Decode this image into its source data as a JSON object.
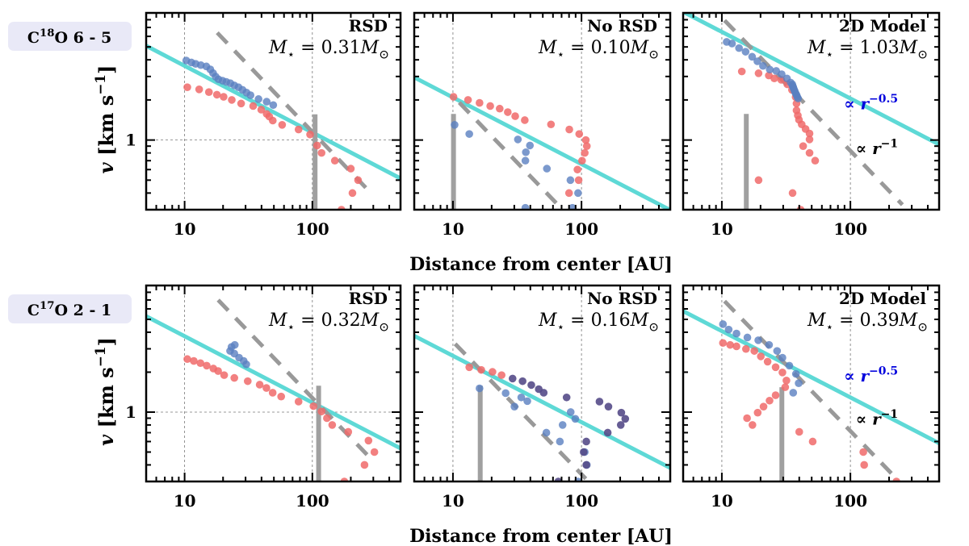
{
  "figure": {
    "rows": [
      {
        "line_label": "C^{18}O 6 - 5",
        "ylabel": "v [km s^{−1}]",
        "xlabel": "Distance from center [AU]"
      },
      {
        "line_label": "C^{17}O 2 - 1",
        "ylabel": "v [km s^{−1}]",
        "xlabel": "Distance from center [AU]"
      }
    ],
    "colors": {
      "fit_line": "#5ed9d6",
      "power_law_dashed": "#999999",
      "redshifted": "#f06a6a",
      "blueshifted": "#5a7fc0",
      "overlap": "#554b88",
      "vertical_bar": "#a0a0a0",
      "annotation_blue": "#0000dd",
      "pill_bg": "#e9e9f7"
    }
  },
  "chart_data": [
    {
      "type": "scatter",
      "row": 0,
      "col": 0,
      "title": "RSD",
      "mass_label": "M_{⋆} = 0.31M_{⊙}",
      "xscale": "log",
      "yscale": "log",
      "xlim": [
        5,
        490
      ],
      "ylim": [
        0.3,
        9
      ],
      "xticks": [
        "10",
        "100"
      ],
      "yticks": [
        "1"
      ],
      "grid": true,
      "fit_power_law": {
        "index": -0.5,
        "coefficient": 11.4
      },
      "dashed_power_law": {
        "index": -1,
        "coefficient": 115,
        "r_range": [
          18,
          290
        ]
      },
      "vertical_marker": {
        "r": 105,
        "v_top": 1.56
      },
      "red": {
        "r": [
          10.5,
          13.0,
          15.5,
          17.9,
          20.2,
          23.4,
          27.7,
          34.4,
          39.8,
          43.9,
          46,
          49,
          58,
          78,
          96,
          109,
          118,
          150,
          200,
          228,
          206,
          169
        ],
        "v": [
          2.49,
          2.4,
          2.29,
          2.19,
          2.11,
          2.0,
          1.88,
          1.8,
          1.69,
          1.57,
          1.5,
          1.4,
          1.3,
          1.2,
          1.1,
          0.91,
          0.8,
          0.7,
          0.61,
          0.5,
          0.4,
          0.3
        ]
      },
      "blue": {
        "r": [
          10.3,
          11.3,
          12.2,
          13.4,
          14.8,
          15.9,
          16.7,
          17.5,
          18.4,
          19.8,
          21.2,
          22.8,
          24.5,
          26.4,
          28.4,
          30.5,
          32.8,
          37.9,
          43.9,
          49.4
        ],
        "v": [
          3.95,
          3.82,
          3.73,
          3.65,
          3.57,
          3.39,
          3.18,
          2.99,
          2.86,
          2.79,
          2.73,
          2.67,
          2.57,
          2.49,
          2.38,
          2.27,
          2.17,
          2.03,
          1.94,
          1.83
        ]
      }
    },
    {
      "type": "scatter",
      "row": 0,
      "col": 1,
      "title": "No RSD",
      "mass_label": "M_{⋆} = 0.10M_{⊙}",
      "xscale": "log",
      "yscale": "log",
      "xlim": [
        5,
        490
      ],
      "ylim": [
        0.3,
        9
      ],
      "xticks": [
        "10",
        "100"
      ],
      "yticks": [],
      "grid": true,
      "fit_power_law": {
        "index": -0.5,
        "coefficient": 6.6
      },
      "dashed_power_law": {
        "index": -1,
        "coefficient": 21.4,
        "r_range": [
          11.2,
          67
        ]
      },
      "vertical_marker": {
        "r": 10.1,
        "v_top": 1.57
      },
      "red": {
        "r": [
          10.1,
          13.1,
          16.1,
          19.5,
          23.1,
          26.7,
          30.5,
          36.2,
          57.9,
          80.4,
          96,
          108,
          110,
          106,
          101,
          93,
          95,
          80
        ],
        "v": [
          2.11,
          2.0,
          1.9,
          1.8,
          1.72,
          1.62,
          1.51,
          1.41,
          1.31,
          1.2,
          1.11,
          1.0,
          0.9,
          0.8,
          0.7,
          0.6,
          0.5,
          0.4
        ]
      },
      "blue": {
        "r": [
          10.3,
          13.4,
          32,
          39.7,
          36.9,
          36.6,
          53.8,
          82,
          94,
          36.6,
          85
        ],
        "v": [
          1.3,
          1.11,
          1.01,
          0.91,
          0.81,
          0.7,
          0.61,
          0.5,
          0.4,
          0.31,
          0.31
        ]
      }
    },
    {
      "type": "scatter",
      "row": 0,
      "col": 2,
      "title": "2D Model",
      "mass_label": "M_{⋆} = 1.03M_{⊙}",
      "xscale": "log",
      "yscale": "log",
      "xlim": [
        5,
        490
      ],
      "ylim": [
        0.3,
        9
      ],
      "xticks": [
        "10",
        "100"
      ],
      "yticks": [],
      "grid": true,
      "fit_power_law": {
        "index": -0.5,
        "coefficient": 20.5
      },
      "dashed_power_law": {
        "index": -1,
        "coefficient": 83,
        "r_range": [
          10.5,
          254
        ]
      },
      "vertical_marker": {
        "r": 15.5,
        "v_top": 1.57
      },
      "annotations": [
        {
          "text": "∝ r^{−0.5}",
          "r": 89,
          "v": 1.9,
          "color": "blue"
        },
        {
          "text": "∝ r^{−1}",
          "r": 110,
          "v": 0.88,
          "color": "black"
        }
      ],
      "red": {
        "r": [
          14.3,
          19.3,
          23.2,
          25.6,
          29.0,
          32.3,
          35.1,
          37.5,
          38.1,
          38.1,
          39.0,
          39.8,
          41.8,
          44.8,
          48.1,
          48.1,
          42.9,
          48.1,
          53.2,
          19.3,
          35.5,
          41.0
        ],
        "v": [
          3.27,
          3.17,
          3.05,
          2.9,
          2.83,
          2.62,
          2.38,
          2.1,
          1.88,
          1.67,
          1.53,
          1.42,
          1.31,
          1.21,
          1.12,
          1.01,
          0.9,
          0.8,
          0.7,
          0.5,
          0.4,
          0.3
        ]
      },
      "blue": {
        "r": [
          10.9,
          12.0,
          13.6,
          15.3,
          17.2,
          18.9,
          20.9,
          23.6,
          26.5,
          29.2,
          32.1,
          34.3,
          35.3,
          35.6,
          35.9,
          36.2,
          36.6,
          37.0,
          37.5,
          38.1,
          38.6,
          39.2
        ],
        "v": [
          5.45,
          5.3,
          4.9,
          4.6,
          4.22,
          3.9,
          3.6,
          3.38,
          3.3,
          3.12,
          2.9,
          2.7,
          2.62,
          2.55,
          2.49,
          2.43,
          2.37,
          2.31,
          2.24,
          2.18,
          2.11,
          2.05
        ]
      }
    },
    {
      "type": "scatter",
      "row": 1,
      "col": 0,
      "title": "RSD",
      "mass_label": "M_{⋆} = 0.32M_{⊙}",
      "xscale": "log",
      "yscale": "log",
      "xlim": [
        5,
        490
      ],
      "ylim": [
        0.3,
        9
      ],
      "xticks": [
        "10",
        "100"
      ],
      "yticks": [
        "1"
      ],
      "grid": true,
      "fit_power_law": {
        "index": -0.5,
        "coefficient": 11.8
      },
      "dashed_power_law": {
        "index": -1,
        "coefficient": 128,
        "r_range": [
          18.3,
          295
        ]
      },
      "vertical_marker": {
        "r": 112,
        "v_top": 1.58
      },
      "red": {
        "r": [
          10.5,
          11.8,
          13.3,
          14.9,
          16.8,
          18.3,
          20.4,
          24.5,
          31.2,
          38.7,
          43.7,
          48.9,
          57,
          78,
          102,
          118,
          130,
          143,
          191,
          275,
          306,
          256,
          178
        ],
        "v": [
          2.51,
          2.43,
          2.34,
          2.24,
          2.13,
          2.04,
          1.9,
          1.81,
          1.71,
          1.61,
          1.52,
          1.4,
          1.31,
          1.2,
          1.11,
          1.01,
          0.9,
          0.8,
          0.71,
          0.61,
          0.5,
          0.4,
          0.3
        ]
      },
      "blue": {
        "r": [
          22.7,
          24.7,
          23.3,
          24.5,
          26.7,
          29,
          30.4
        ],
        "v": [
          2.89,
          3.21,
          3.1,
          2.76,
          2.57,
          2.43,
          2.29
        ]
      }
    },
    {
      "type": "scatter",
      "row": 1,
      "col": 1,
      "title": "No RSD",
      "mass_label": "M_{⋆} = 0.16M_{⊙}",
      "xscale": "log",
      "yscale": "log",
      "xlim": [
        5,
        490
      ],
      "ylim": [
        0.3,
        9
      ],
      "xticks": [
        "10",
        "100"
      ],
      "yticks": [],
      "grid": true,
      "fit_power_law": {
        "index": -0.5,
        "coefficient": 8.4
      },
      "dashed_power_law": {
        "index": -1,
        "coefficient": 34,
        "r_range": [
          10.4,
          108
        ]
      },
      "vertical_marker": {
        "r": 16.3,
        "v_top": 1.58
      },
      "red": {
        "r": [
          13.4,
          16.6,
          20.3,
          23.9
        ],
        "v": [
          2.18,
          2.08,
          2.01,
          1.9
        ]
      },
      "blue": {
        "r": [
          16.1,
          25.7,
          34,
          37.9,
          30.1,
          82.4,
          89.5,
          71.3,
          53.3,
          67.9,
          106,
          110,
          94
        ],
        "v": [
          1.51,
          1.39,
          1.29,
          1.21,
          1.1,
          1.0,
          0.89,
          0.8,
          0.7,
          0.6,
          0.5,
          0.4,
          0.3
        ]
      },
      "overlap": {
        "r": [
          29.1,
          34.8,
          40.7,
          46.5,
          50.8,
          76.6,
          138,
          162,
          204,
          219,
          202,
          160,
          109,
          104,
          109,
          66
        ],
        "v": [
          1.79,
          1.71,
          1.6,
          1.49,
          1.4,
          1.29,
          1.2,
          1.1,
          0.99,
          0.89,
          0.8,
          0.7,
          0.6,
          0.5,
          0.4,
          0.3
        ]
      }
    },
    {
      "type": "scatter",
      "row": 1,
      "col": 2,
      "title": "2D Model",
      "mass_label": "M_{⋆} = 0.39M_{⊙}",
      "xscale": "log",
      "yscale": "log",
      "xlim": [
        5,
        490
      ],
      "ylim": [
        0.3,
        9
      ],
      "xticks": [
        "10",
        "100"
      ],
      "yticks": [],
      "grid": true,
      "fit_power_law": {
        "index": -0.5,
        "coefficient": 12.9
      },
      "dashed_power_law": {
        "index": -1,
        "coefficient": 72,
        "r_range": [
          10.5,
          236
        ]
      },
      "vertical_marker": {
        "r": 29.3,
        "v_top": 1.54
      },
      "annotations": [
        {
          "text": "∝ r^{−0.5}",
          "r": 89,
          "v": 1.9,
          "color": "blue"
        },
        {
          "text": "∝ r^{−1}",
          "r": 110,
          "v": 0.9,
          "color": "black"
        }
      ],
      "red": {
        "r": [
          10.2,
          11.6,
          13,
          15.4,
          17.9,
          20.1,
          22.7,
          26.2,
          29.6,
          31.8,
          31.1,
          26.2,
          23.5,
          21.1,
          19,
          15.7,
          17.3,
          40,
          50.9,
          126,
          128,
          228
        ],
        "v": [
          3.32,
          3.21,
          3.13,
          2.99,
          2.89,
          2.63,
          2.4,
          2.18,
          1.99,
          1.73,
          1.54,
          1.34,
          1.22,
          1.1,
          0.99,
          0.9,
          0.8,
          0.71,
          0.6,
          0.5,
          0.4,
          0.3
        ]
      },
      "blue": {
        "r": [
          10.2,
          11.3,
          13,
          15.8,
          19.2,
          23.3,
          26.9,
          29.6,
          33.5,
          37.7,
          39.6,
          35.9
        ],
        "v": [
          4.6,
          4.19,
          3.91,
          3.65,
          3.48,
          3.21,
          2.89,
          2.57,
          2.24,
          1.94,
          1.65,
          1.4
        ]
      }
    }
  ]
}
